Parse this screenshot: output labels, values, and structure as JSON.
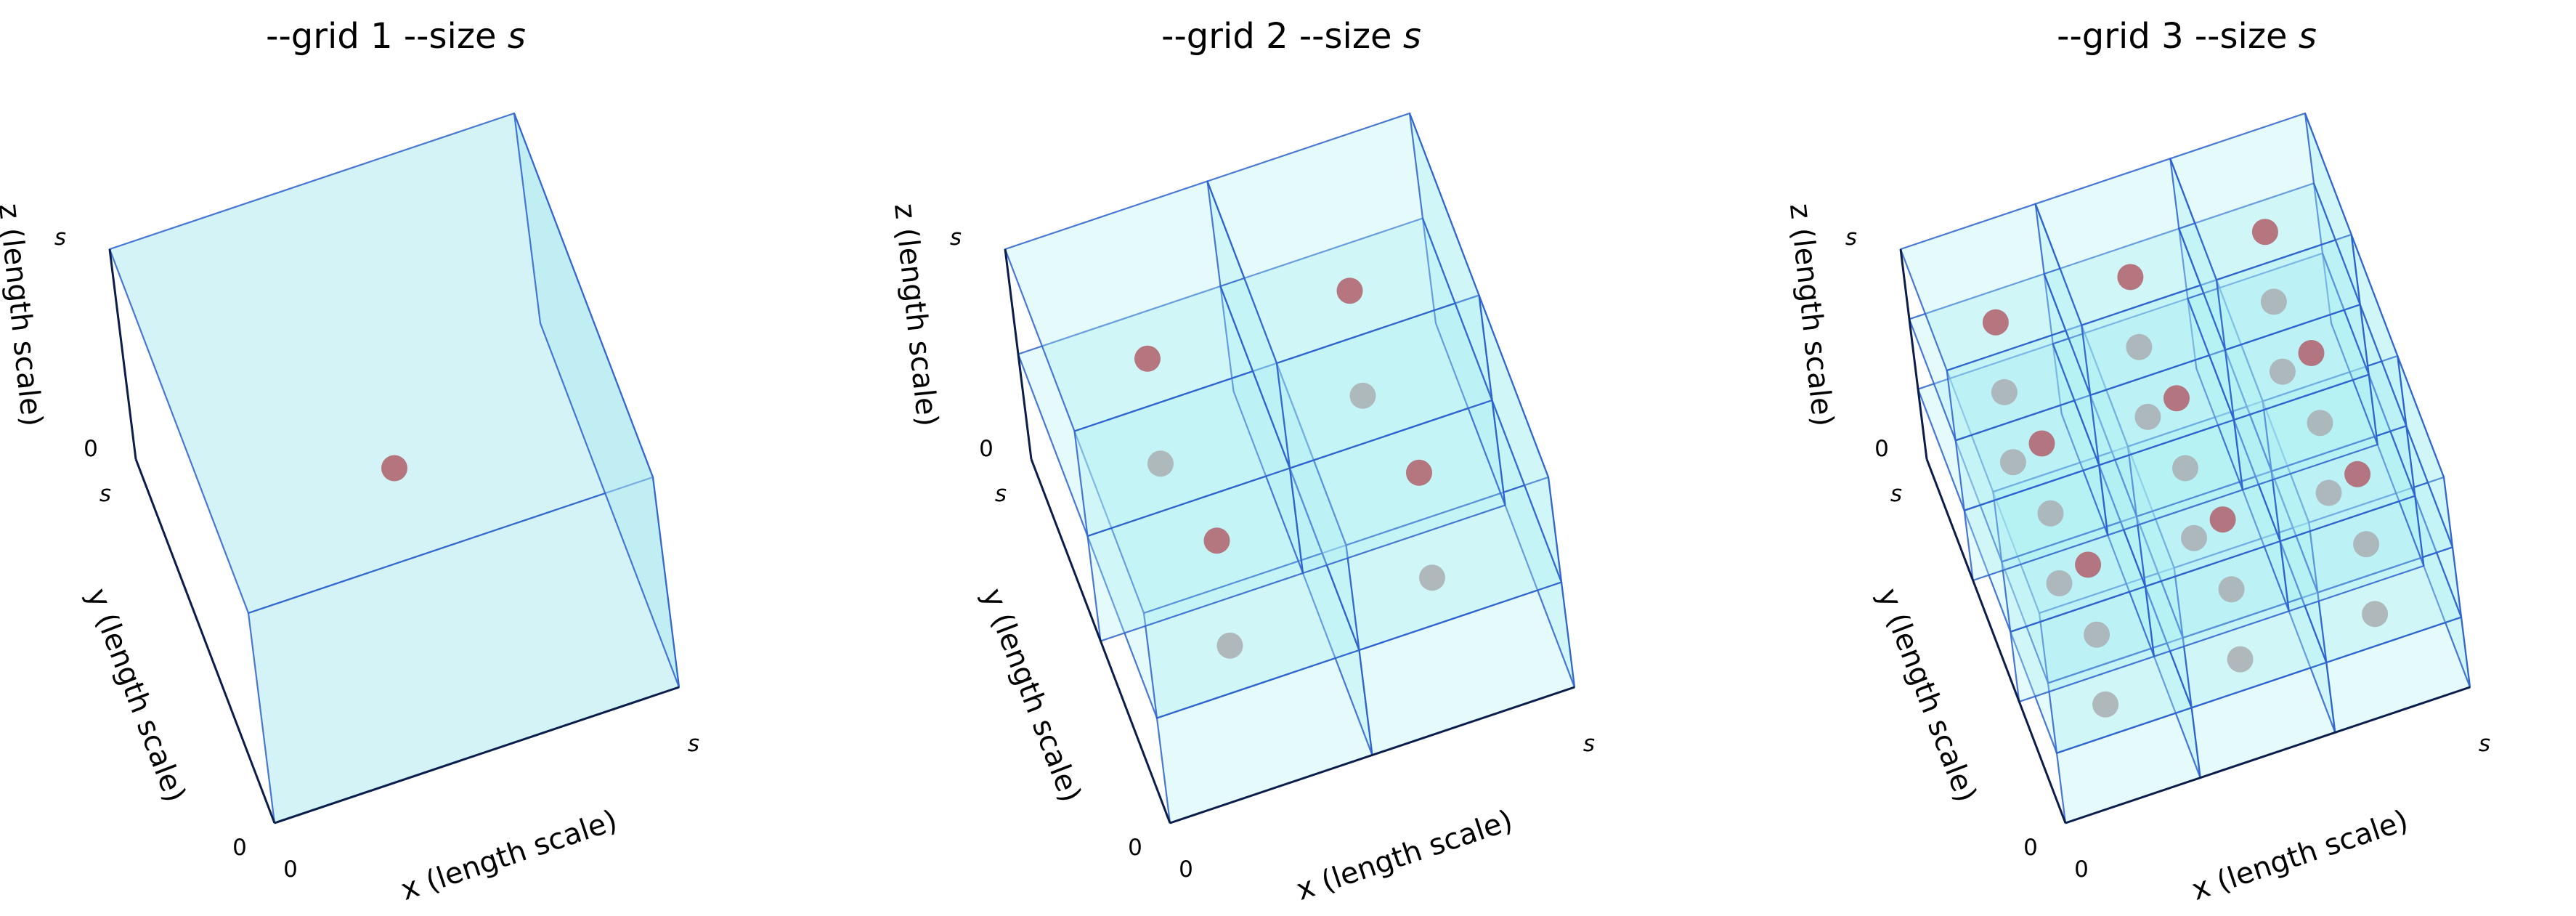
{
  "panels": [
    {
      "title_prefix": "--grid 1 --size ",
      "title_var": "s",
      "grid": 1,
      "xlabel": "x (length scale)",
      "ylabel": "y (length scale)",
      "zlabel": "z (length scale)",
      "ticks": {
        "x0": "0",
        "xs": "s",
        "y0": "0",
        "ys": "s",
        "z0": "0",
        "zs": "s"
      },
      "highlight_points": [
        [
          0.5,
          0.5,
          0.5
        ]
      ],
      "ghost_points": []
    },
    {
      "title_prefix": "--grid 2 --size ",
      "title_var": "s",
      "grid": 2,
      "xlabel": "x (length scale)",
      "ylabel": "y (length scale)",
      "zlabel": "z (length scale)",
      "ticks": {
        "x0": "0",
        "xs": "s",
        "y0": "0",
        "ys": "s",
        "z0": "0",
        "zs": "s"
      },
      "highlight_points": [
        [
          0.25,
          0.75,
          0.75
        ],
        [
          0.75,
          0.75,
          0.75
        ],
        [
          0.25,
          0.25,
          0.75
        ],
        [
          0.75,
          0.25,
          0.75
        ]
      ],
      "ghost_points": [
        [
          0.25,
          0.75,
          0.25
        ],
        [
          0.75,
          0.75,
          0.25
        ],
        [
          0.25,
          0.25,
          0.25
        ],
        [
          0.75,
          0.25,
          0.25
        ]
      ]
    },
    {
      "title_prefix": "--grid 3 --size ",
      "title_var": "s",
      "grid": 3,
      "xlabel": "x (length scale)",
      "ylabel": "y (length scale)",
      "zlabel": "z (length scale)",
      "ticks": {
        "x0": "0",
        "xs": "s",
        "y0": "0",
        "ys": "s",
        "z0": "0",
        "zs": "s"
      },
      "highlight_points": [
        [
          0.167,
          0.833,
          0.833
        ],
        [
          0.5,
          0.833,
          0.833
        ],
        [
          0.833,
          0.833,
          0.833
        ],
        [
          0.167,
          0.5,
          0.833
        ],
        [
          0.5,
          0.5,
          0.833
        ],
        [
          0.833,
          0.5,
          0.833
        ],
        [
          0.167,
          0.167,
          0.833
        ],
        [
          0.5,
          0.167,
          0.833
        ],
        [
          0.833,
          0.167,
          0.833
        ]
      ],
      "ghost_points": [
        [
          0.167,
          0.833,
          0.5
        ],
        [
          0.5,
          0.833,
          0.5
        ],
        [
          0.833,
          0.833,
          0.5
        ],
        [
          0.167,
          0.5,
          0.5
        ],
        [
          0.5,
          0.5,
          0.5
        ],
        [
          0.833,
          0.5,
          0.5
        ],
        [
          0.167,
          0.167,
          0.5
        ],
        [
          0.5,
          0.167,
          0.5
        ],
        [
          0.833,
          0.167,
          0.5
        ],
        [
          0.167,
          0.833,
          0.167
        ],
        [
          0.5,
          0.833,
          0.167
        ],
        [
          0.833,
          0.833,
          0.167
        ],
        [
          0.167,
          0.5,
          0.167
        ],
        [
          0.5,
          0.5,
          0.167
        ],
        [
          0.833,
          0.5,
          0.167
        ],
        [
          0.167,
          0.167,
          0.167
        ],
        [
          0.5,
          0.167,
          0.167
        ],
        [
          0.833,
          0.167,
          0.167
        ]
      ]
    }
  ],
  "colors": {
    "face_grid1": "#b0eaf0",
    "face_grid_n": "#aaf0f2",
    "edge": "#2a5fcf",
    "axis": "#0b1d4a",
    "highlight_point": "#b26a74",
    "ghost_point": "#a9aeb2"
  }
}
